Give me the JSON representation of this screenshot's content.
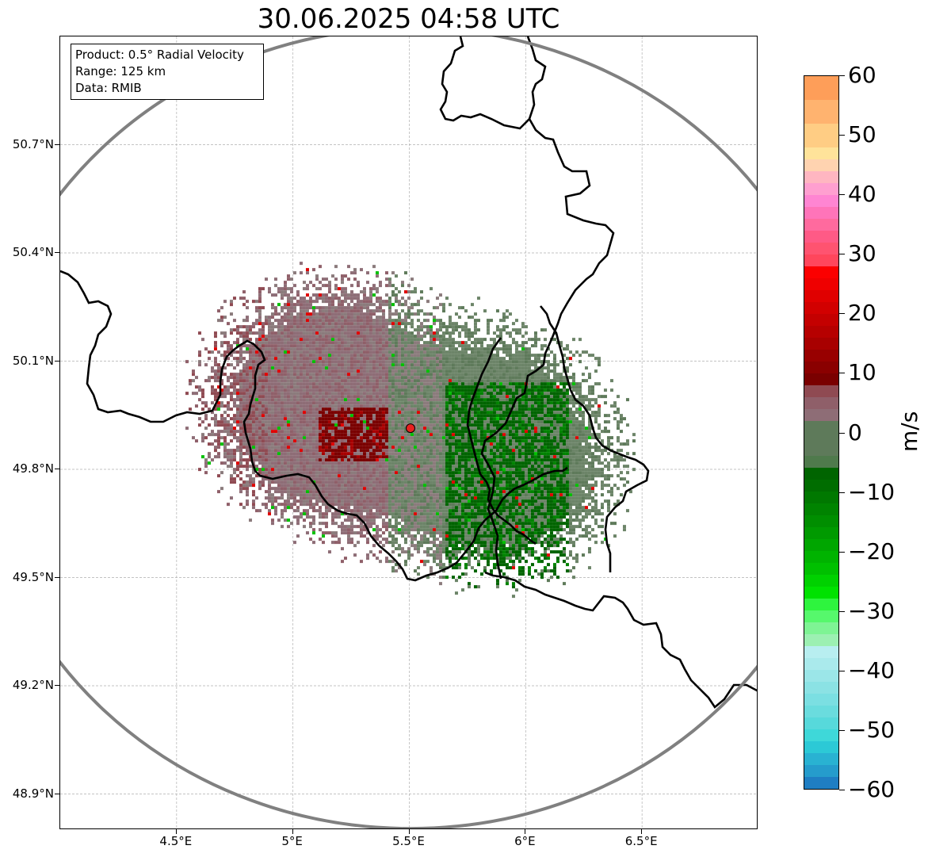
{
  "title": "30.06.2025 04:58 UTC",
  "info": {
    "product": "Product: 0.5° Radial Velocity",
    "range": "Range: 125 km",
    "data": "Data: RMIB"
  },
  "map": {
    "lon_range": [
      4.0,
      7.0
    ],
    "lat_range": [
      48.8,
      51.0
    ],
    "radar_site": {
      "lon": 5.505,
      "lat": 49.914
    },
    "lon_ticks": [
      {
        "value": 4.5,
        "label": "4.5°E"
      },
      {
        "value": 5.0,
        "label": "5°E"
      },
      {
        "value": 5.5,
        "label": "5.5°E"
      },
      {
        "value": 6.0,
        "label": "6°E"
      },
      {
        "value": 6.5,
        "label": "6.5°E"
      }
    ],
    "lat_ticks": [
      {
        "value": 50.7,
        "label": "50.7°N"
      },
      {
        "value": 50.4,
        "label": "50.4°N"
      },
      {
        "value": 50.1,
        "label": "50.1°N"
      },
      {
        "value": 49.8,
        "label": "49.8°N"
      },
      {
        "value": 49.5,
        "label": "49.5°N"
      },
      {
        "value": 49.2,
        "label": "49.2°N"
      },
      {
        "value": 48.9,
        "label": "48.9°N"
      }
    ],
    "range_ring_color": "#808080",
    "border_color": "#000000",
    "gridline_color": "#b0b0b0",
    "site_marker_color": "#e8201f"
  },
  "colorbar": {
    "unit": "m/s",
    "min": -60,
    "max": 60,
    "tick_labels": [
      "60",
      "50",
      "40",
      "30",
      "20",
      "10",
      "0",
      "−10",
      "−20",
      "−30",
      "−40",
      "−50",
      "−60"
    ],
    "segments": [
      {
        "from": 56,
        "to": 60,
        "color": "#fe9e59"
      },
      {
        "from": 52,
        "to": 56,
        "color": "#ffb36f"
      },
      {
        "from": 48,
        "to": 52,
        "color": "#ffcd84"
      },
      {
        "from": 46,
        "to": 48,
        "color": "#ffe39a"
      },
      {
        "from": 44,
        "to": 46,
        "color": "#ffd3b0"
      },
      {
        "from": 42,
        "to": 44,
        "color": "#ffb6c1"
      },
      {
        "from": 40,
        "to": 42,
        "color": "#ff9fd0"
      },
      {
        "from": 38,
        "to": 40,
        "color": "#ff85d2"
      },
      {
        "from": 36,
        "to": 38,
        "color": "#ff74b9"
      },
      {
        "from": 34,
        "to": 36,
        "color": "#ff6a9e"
      },
      {
        "from": 32,
        "to": 34,
        "color": "#ff5a86"
      },
      {
        "from": 30,
        "to": 32,
        "color": "#ff5370"
      },
      {
        "from": 28,
        "to": 30,
        "color": "#ff465c"
      },
      {
        "from": 26,
        "to": 28,
        "color": "#fb0000"
      },
      {
        "from": 24,
        "to": 26,
        "color": "#ef0000"
      },
      {
        "from": 22,
        "to": 24,
        "color": "#e00000"
      },
      {
        "from": 20,
        "to": 22,
        "color": "#d20000"
      },
      {
        "from": 18,
        "to": 20,
        "color": "#c40000"
      },
      {
        "from": 16,
        "to": 18,
        "color": "#b60000"
      },
      {
        "from": 14,
        "to": 16,
        "color": "#a80000"
      },
      {
        "from": 12,
        "to": 14,
        "color": "#980000"
      },
      {
        "from": 10,
        "to": 12,
        "color": "#8a0000"
      },
      {
        "from": 8,
        "to": 10,
        "color": "#7a0000"
      },
      {
        "from": 6,
        "to": 8,
        "color": "#8f4a52"
      },
      {
        "from": 4,
        "to": 6,
        "color": "#8f5f69"
      },
      {
        "from": 2,
        "to": 4,
        "color": "#8e6d76"
      },
      {
        "from": 0,
        "to": 2,
        "color": "#8b7b7c"
      },
      {
        "from": -2,
        "to": 0,
        "color": "#6c8468"
      },
      {
        "from": -4,
        "to": 2,
        "color": "#5e7a5a"
      },
      {
        "from": -6,
        "to": -4,
        "color": "#4f7a4c"
      },
      {
        "from": -8,
        "to": -6,
        "color": "#006400"
      },
      {
        "from": -10,
        "to": -8,
        "color": "#006d00"
      },
      {
        "from": -12,
        "to": -10,
        "color": "#007800"
      },
      {
        "from": -14,
        "to": -12,
        "color": "#008300"
      },
      {
        "from": -16,
        "to": -14,
        "color": "#008e00"
      },
      {
        "from": -18,
        "to": -16,
        "color": "#009a00"
      },
      {
        "from": -20,
        "to": -18,
        "color": "#00a600"
      },
      {
        "from": -22,
        "to": -20,
        "color": "#00b300"
      },
      {
        "from": -24,
        "to": -22,
        "color": "#00c000"
      },
      {
        "from": -26,
        "to": -24,
        "color": "#00d100"
      },
      {
        "from": -28,
        "to": -26,
        "color": "#00e200"
      },
      {
        "from": -30,
        "to": -28,
        "color": "#2ef43e"
      },
      {
        "from": -32,
        "to": -30,
        "color": "#56f86c"
      },
      {
        "from": -34,
        "to": -32,
        "color": "#7ef494"
      },
      {
        "from": -36,
        "to": -34,
        "color": "#9cf0b2"
      },
      {
        "from": -38,
        "to": -36,
        "color": "#b8eef0"
      },
      {
        "from": -40,
        "to": -38,
        "color": "#aaeaec"
      },
      {
        "from": -42,
        "to": -40,
        "color": "#9be6e8"
      },
      {
        "from": -44,
        "to": -42,
        "color": "#8be2e4"
      },
      {
        "from": -46,
        "to": -44,
        "color": "#7bdfe2"
      },
      {
        "from": -48,
        "to": -46,
        "color": "#6adcde"
      },
      {
        "from": -50,
        "to": -48,
        "color": "#57d9db"
      },
      {
        "from": -52,
        "to": -50,
        "color": "#3ed8d9"
      },
      {
        "from": -54,
        "to": -52,
        "color": "#2cc9d6"
      },
      {
        "from": -56,
        "to": -54,
        "color": "#29b2d2"
      },
      {
        "from": -58,
        "to": -56,
        "color": "#259ccc"
      },
      {
        "from": -60,
        "to": -58,
        "color": "#1f7ec3"
      }
    ]
  }
}
